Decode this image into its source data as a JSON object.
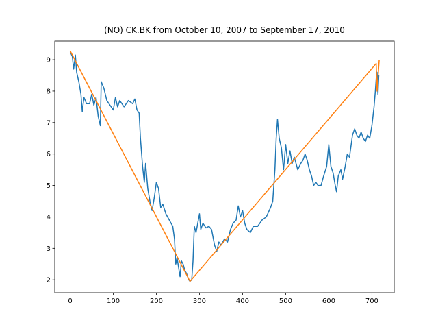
{
  "chart_data": {
    "type": "line",
    "title": "(NO) CK.BK from October 10, 2007 to September 17, 2010",
    "xlim": [
      -35.8,
      751.8
    ],
    "xticks": [
      0,
      100,
      200,
      300,
      400,
      500,
      600,
      700
    ],
    "ylim": [
      1.59,
      9.59
    ],
    "yticks": [
      2,
      3,
      4,
      5,
      6,
      7,
      8,
      9
    ],
    "series": [
      {
        "color": "#1f77b4",
        "x": [
          0,
          5,
          8,
          12,
          15,
          20,
          25,
          28,
          32,
          38,
          45,
          50,
          55,
          60,
          65,
          70,
          72,
          78,
          85,
          95,
          100,
          105,
          110,
          115,
          125,
          135,
          145,
          150,
          155,
          160,
          163,
          168,
          172,
          175,
          180,
          185,
          190,
          195,
          200,
          205,
          210,
          215,
          222,
          230,
          238,
          242,
          245,
          248,
          252,
          255,
          258,
          262,
          266,
          270,
          275,
          278,
          282,
          285,
          288,
          292,
          296,
          300,
          303,
          308,
          315,
          322,
          328,
          335,
          340,
          345,
          350,
          358,
          365,
          372,
          378,
          385,
          390,
          395,
          400,
          405,
          410,
          418,
          425,
          435,
          445,
          455,
          465,
          470,
          475,
          478,
          481,
          485,
          490,
          495,
          500,
          505,
          510,
          515,
          520,
          528,
          535,
          540,
          545,
          550,
          555,
          560,
          565,
          570,
          575,
          582,
          588,
          595,
          600,
          605,
          610,
          615,
          618,
          622,
          628,
          632,
          638,
          643,
          648,
          655,
          660,
          665,
          670,
          675,
          680,
          685,
          690,
          695,
          700,
          705,
          708,
          710,
          712,
          714,
          716
        ],
        "values": [
          9.25,
          9.1,
          8.7,
          9.15,
          8.6,
          8.3,
          7.9,
          7.35,
          7.8,
          7.6,
          7.6,
          7.9,
          7.55,
          7.8,
          7.2,
          6.9,
          8.3,
          8.1,
          7.7,
          7.5,
          7.4,
          7.8,
          7.5,
          7.7,
          7.5,
          7.7,
          7.6,
          7.75,
          7.4,
          7.3,
          6.5,
          5.6,
          5.1,
          5.7,
          4.9,
          4.5,
          4.2,
          4.6,
          5.1,
          4.9,
          4.3,
          4.4,
          4.1,
          3.9,
          3.7,
          3.3,
          2.5,
          2.7,
          2.35,
          2.1,
          2.6,
          2.5,
          2.3,
          2.2,
          2.0,
          1.95,
          2.0,
          2.6,
          3.7,
          3.5,
          3.8,
          4.1,
          3.6,
          3.8,
          3.65,
          3.7,
          3.6,
          3.1,
          2.9,
          3.2,
          3.1,
          3.3,
          3.2,
          3.6,
          3.8,
          3.9,
          4.35,
          4.0,
          4.2,
          3.8,
          3.6,
          3.5,
          3.7,
          3.7,
          3.9,
          4.0,
          4.3,
          4.5,
          5.5,
          6.5,
          7.1,
          6.5,
          6.2,
          5.5,
          6.3,
          5.7,
          6.1,
          5.7,
          5.9,
          5.5,
          5.7,
          5.8,
          6.0,
          5.8,
          5.5,
          5.3,
          5.0,
          5.1,
          5.0,
          5.0,
          5.3,
          5.6,
          6.3,
          5.6,
          5.4,
          5.0,
          4.8,
          5.3,
          5.5,
          5.2,
          5.6,
          6.0,
          5.9,
          6.6,
          6.8,
          6.6,
          6.5,
          6.7,
          6.5,
          6.4,
          6.6,
          6.5,
          6.9,
          7.5,
          8.0,
          8.4,
          8.6,
          7.9,
          8.5
        ]
      },
      {
        "color": "#ff7f0e",
        "x": [
          0,
          278,
          710,
          712,
          717
        ],
        "values": [
          9.28,
          1.95,
          8.88,
          8.0,
          9.0
        ]
      }
    ]
  }
}
